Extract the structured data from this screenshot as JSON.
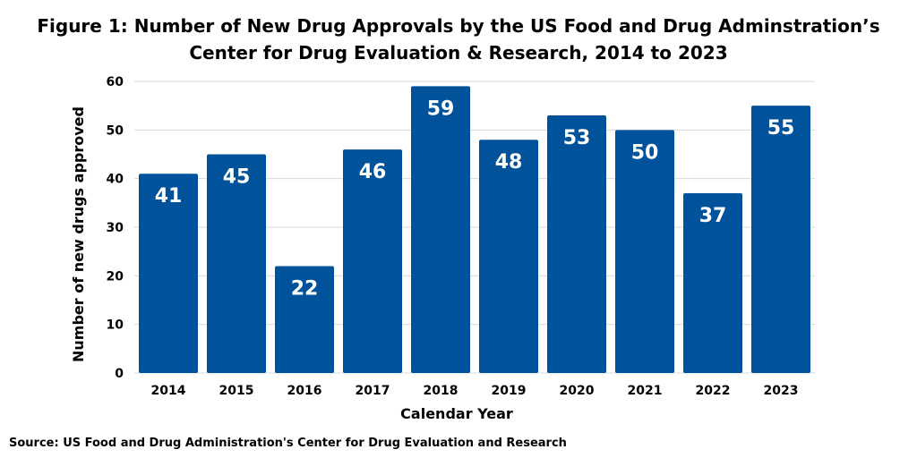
{
  "chart_data": {
    "type": "bar",
    "title_lines": [
      "Figure 1: Number of New Drug Approvals by the US Food and Drug Adminstration’s",
      "Center for Drug Evaluation & Research, 2014 to 2023"
    ],
    "categories": [
      "2014",
      "2015",
      "2016",
      "2017",
      "2018",
      "2019",
      "2020",
      "2021",
      "2022",
      "2023"
    ],
    "values": [
      41,
      45,
      22,
      46,
      59,
      48,
      53,
      50,
      37,
      55
    ],
    "xlabel": "Calendar Year",
    "ylabel": "Number of new drugs approved",
    "ylim": [
      0,
      60
    ],
    "yticks": [
      "0",
      "10",
      "20",
      "30",
      "40",
      "50",
      "60"
    ],
    "grid": true,
    "legend": "none",
    "bar_color": "#00529b",
    "grid_color": "#d9d9d9"
  },
  "source": "Source: US Food and Drug Administration's Center for Drug Evaluation and Research"
}
